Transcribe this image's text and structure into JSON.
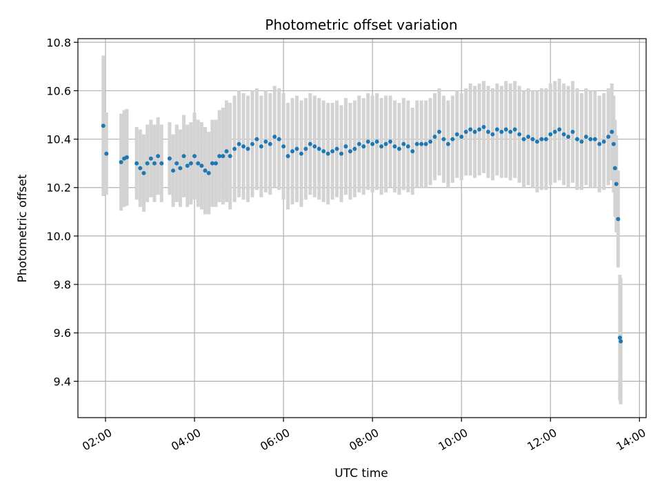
{
  "chart_data": {
    "type": "scatter",
    "title": "Photometric offset variation",
    "xlabel": "UTC time",
    "ylabel": "Photometric offset",
    "x_unit": "hour (UTC)",
    "xlim": [
      1.38,
      14.15
    ],
    "ylim": [
      9.25,
      10.815
    ],
    "grid": true,
    "x_ticks": [
      {
        "value": 2,
        "label": "02:00"
      },
      {
        "value": 4,
        "label": "04:00"
      },
      {
        "value": 6,
        "label": "06:00"
      },
      {
        "value": 8,
        "label": "08:00"
      },
      {
        "value": 10,
        "label": "10:00"
      },
      {
        "value": 12,
        "label": "12:00"
      },
      {
        "value": 14,
        "label": "14:00"
      }
    ],
    "y_ticks": [
      {
        "value": 9.4,
        "label": "9.4"
      },
      {
        "value": 9.6,
        "label": "9.6"
      },
      {
        "value": 9.8,
        "label": "9.8"
      },
      {
        "value": 10.0,
        "label": "10.0"
      },
      {
        "value": 10.2,
        "label": "10.2"
      },
      {
        "value": 10.4,
        "label": "10.4"
      },
      {
        "value": 10.6,
        "label": "10.6"
      },
      {
        "value": 10.8,
        "label": "10.8"
      }
    ],
    "colors": {
      "points": "#1f77b4",
      "errorbars": "#d3d3d3",
      "grid": "#b0b0b0"
    },
    "series": [
      {
        "x": [
          1.95,
          2.02,
          2.35,
          2.42,
          2.48,
          2.7,
          2.78,
          2.86,
          2.94,
          3.02,
          3.1,
          3.18,
          3.26,
          3.44,
          3.52,
          3.6,
          3.68,
          3.76,
          3.84,
          3.92,
          4.0,
          4.08,
          4.16,
          4.24,
          4.32,
          4.4,
          4.48,
          4.56,
          4.64,
          4.72,
          4.8,
          4.9,
          5.0,
          5.1,
          5.2,
          5.3,
          5.4,
          5.5,
          5.6,
          5.7,
          5.8,
          5.9,
          6.0,
          6.1,
          6.2,
          6.3,
          6.4,
          6.5,
          6.6,
          6.7,
          6.8,
          6.9,
          7.0,
          7.1,
          7.2,
          7.3,
          7.4,
          7.5,
          7.6,
          7.7,
          7.8,
          7.9,
          8.0,
          8.1,
          8.2,
          8.3,
          8.4,
          8.5,
          8.6,
          8.7,
          8.8,
          8.9,
          9.0,
          9.1,
          9.2,
          9.3,
          9.4,
          9.5,
          9.6,
          9.7,
          9.8,
          9.9,
          10.0,
          10.1,
          10.2,
          10.3,
          10.4,
          10.5,
          10.6,
          10.7,
          10.8,
          10.9,
          11.0,
          11.1,
          11.2,
          11.3,
          11.4,
          11.5,
          11.6,
          11.7,
          11.8,
          11.9,
          12.0,
          12.1,
          12.2,
          12.3,
          12.4,
          12.5,
          12.6,
          12.7,
          12.8,
          12.9,
          13.0,
          13.1,
          13.2,
          13.3,
          13.38,
          13.42,
          13.45,
          13.48,
          13.52,
          13.56,
          13.58
        ],
        "y": [
          10.455,
          10.34,
          10.305,
          10.32,
          10.325,
          10.3,
          10.28,
          10.26,
          10.3,
          10.32,
          10.3,
          10.33,
          10.3,
          10.32,
          10.27,
          10.3,
          10.28,
          10.33,
          10.29,
          10.3,
          10.33,
          10.3,
          10.29,
          10.27,
          10.26,
          10.3,
          10.3,
          10.33,
          10.33,
          10.35,
          10.33,
          10.36,
          10.38,
          10.37,
          10.36,
          10.38,
          10.4,
          10.37,
          10.39,
          10.38,
          10.41,
          10.4,
          10.37,
          10.33,
          10.35,
          10.36,
          10.34,
          10.36,
          10.38,
          10.37,
          10.36,
          10.35,
          10.34,
          10.35,
          10.36,
          10.34,
          10.37,
          10.35,
          10.36,
          10.38,
          10.37,
          10.39,
          10.38,
          10.39,
          10.37,
          10.38,
          10.39,
          10.37,
          10.36,
          10.38,
          10.37,
          10.35,
          10.38,
          10.38,
          10.38,
          10.39,
          10.41,
          10.43,
          10.4,
          10.38,
          10.4,
          10.42,
          10.41,
          10.43,
          10.44,
          10.43,
          10.44,
          10.45,
          10.43,
          10.42,
          10.44,
          10.43,
          10.44,
          10.43,
          10.44,
          10.42,
          10.4,
          10.41,
          10.4,
          10.39,
          10.4,
          10.4,
          10.42,
          10.43,
          10.44,
          10.42,
          10.41,
          10.43,
          10.4,
          10.39,
          10.41,
          10.4,
          10.4,
          10.38,
          10.39,
          10.41,
          10.43,
          10.38,
          10.28,
          10.215,
          10.07,
          9.58,
          9.565
        ],
        "err": [
          0.29,
          0.17,
          0.2,
          0.2,
          0.2,
          0.15,
          0.16,
          0.16,
          0.16,
          0.16,
          0.16,
          0.16,
          0.16,
          0.15,
          0.15,
          0.16,
          0.16,
          0.17,
          0.17,
          0.17,
          0.18,
          0.18,
          0.18,
          0.18,
          0.17,
          0.18,
          0.18,
          0.19,
          0.2,
          0.21,
          0.22,
          0.22,
          0.22,
          0.22,
          0.22,
          0.22,
          0.21,
          0.21,
          0.21,
          0.21,
          0.21,
          0.21,
          0.22,
          0.22,
          0.22,
          0.22,
          0.22,
          0.21,
          0.21,
          0.21,
          0.21,
          0.21,
          0.21,
          0.2,
          0.2,
          0.2,
          0.2,
          0.2,
          0.2,
          0.2,
          0.2,
          0.2,
          0.2,
          0.2,
          0.2,
          0.2,
          0.19,
          0.19,
          0.19,
          0.19,
          0.19,
          0.18,
          0.18,
          0.18,
          0.18,
          0.18,
          0.18,
          0.18,
          0.18,
          0.18,
          0.18,
          0.18,
          0.18,
          0.18,
          0.19,
          0.19,
          0.19,
          0.19,
          0.19,
          0.19,
          0.19,
          0.19,
          0.2,
          0.2,
          0.2,
          0.2,
          0.2,
          0.2,
          0.2,
          0.21,
          0.21,
          0.21,
          0.21,
          0.21,
          0.21,
          0.21,
          0.21,
          0.21,
          0.21,
          0.2,
          0.2,
          0.2,
          0.2,
          0.2,
          0.2,
          0.2,
          0.2,
          0.2,
          0.2,
          0.2,
          0.2,
          0.26,
          0.26
        ]
      }
    ]
  }
}
